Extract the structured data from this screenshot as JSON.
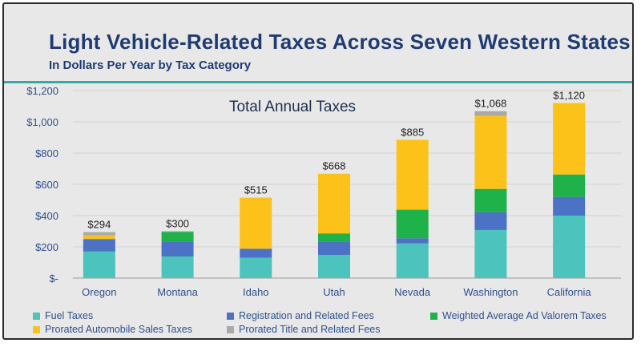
{
  "header": {
    "title": "Light Vehicle-Related Taxes Across Seven Western States",
    "subtitle": "In Dollars Per Year by Tax Category"
  },
  "chart_data": {
    "type": "bar",
    "stacked": true,
    "title": "Total Annual Taxes",
    "categories": [
      "Oregon",
      "Montana",
      "Idaho",
      "Utah",
      "Nevada",
      "Washington",
      "California"
    ],
    "series": [
      {
        "name": "Fuel Taxes",
        "color": "#4cc3bd",
        "values": [
          170,
          138,
          130,
          148,
          222,
          308,
          400
        ]
      },
      {
        "name": "Registration and Related Fees",
        "color": "#4b72c4",
        "values": [
          80,
          97,
          58,
          83,
          33,
          113,
          120
        ]
      },
      {
        "name": "Weighted Average Ad Valorem Taxes",
        "color": "#1fb24a",
        "values": [
          0,
          60,
          0,
          55,
          183,
          150,
          143
        ]
      },
      {
        "name": "Prorated Automobile Sales Taxes",
        "color": "#fdc21a",
        "values": [
          24,
          0,
          327,
          382,
          447,
          467,
          457
        ]
      },
      {
        "name": "Prorated Title and Related Fees",
        "color": "#a9a9a9",
        "values": [
          20,
          5,
          0,
          0,
          0,
          30,
          0
        ]
      }
    ],
    "totals": [
      "$294",
      "$300",
      "$515",
      "$668",
      "$885",
      "$1,068",
      "$1,120"
    ],
    "y_tick_labels": [
      "$-",
      "$200",
      "$400",
      "$600",
      "$800",
      "$1,000",
      "$1,200"
    ],
    "ylim": [
      0,
      1200
    ],
    "y_tick_step": 200,
    "grid": true,
    "legend_position": "bottom"
  }
}
